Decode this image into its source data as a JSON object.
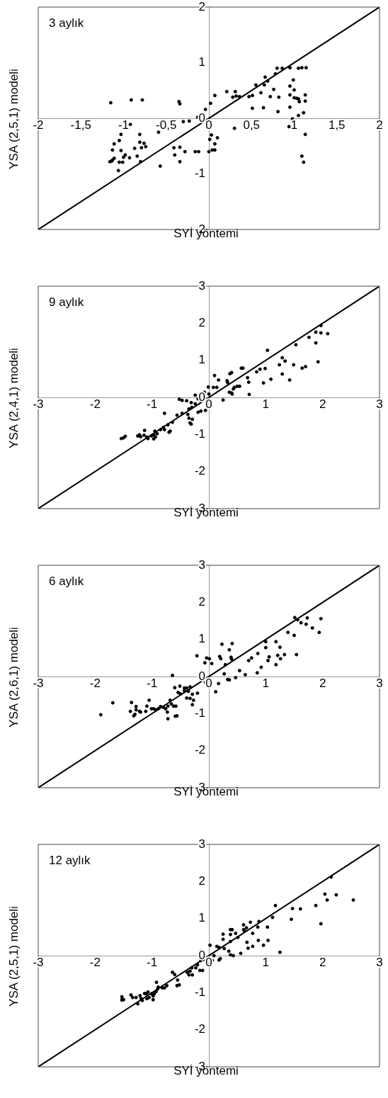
{
  "chart_data": [
    {
      "type": "scatter",
      "annotations": [
        "3 aylık"
      ],
      "xlabel": "SYİ yöntemi",
      "ylabel": "YSA (2,5,1) modeli",
      "xlim": [
        -2,
        2
      ],
      "ylim": [
        -2,
        2
      ],
      "xticks": [
        -2,
        {
          "value": -1.5,
          "label": "-1,5"
        },
        -1,
        {
          "value": -0.5,
          "label": "-0,5"
        },
        0,
        {
          "value": 0.5,
          "label": "0,5"
        },
        1,
        {
          "value": 1.5,
          "label": "1,5"
        },
        2
      ],
      "yticks": [
        -2,
        -1,
        0,
        1,
        2
      ],
      "series": [
        {
          "type": "scatter",
          "color": "#000000",
          "marker": "circle",
          "x": [
            -1.15,
            -0.91,
            -0.78,
            -0.35,
            -0.34,
            -0.04,
            0.02,
            0.07,
            0.21,
            0.31,
            0.28,
            0.32,
            0.36,
            0.47,
            0.51,
            0.51,
            0.55,
            0.61,
            0.64,
            0.66,
            0.69,
            0.65,
            0.72,
            0.76,
            0.8,
            0.86,
            0.95,
            0.78,
            0.82,
            0.81,
            0.99,
            0.95,
            1.0,
            0.95,
            1.0,
            1.03,
            1.05,
            1.06,
            0.95,
            1.05,
            1.09,
            1.14,
            1.13,
            1.13,
            1.11,
            1.05,
            0.98,
            0.94,
            1.13,
            1.09,
            1.11,
            0.3,
            -0.13,
            -0.3,
            -0.23,
            -0.59,
            -1.03,
            -0.81,
            -0.92,
            -1.05,
            -1.11,
            -0.81,
            -0.76,
            -0.74,
            -0.87,
            -0.79,
            -1.13,
            -1.03,
            -0.98,
            -1.0,
            -0.93,
            -0.84,
            -1.16,
            -1.14,
            -1.13,
            -1.11,
            -1.05,
            -1.01,
            -0.8,
            -1.06,
            -0.57,
            -0.41,
            -0.34,
            -0.28,
            -0.4,
            -0.34,
            -0.16,
            -0.12,
            0.0,
            0.04,
            0.07,
            0.07,
            0.1,
            0.03,
            0.01
          ],
          "values": [
            0.28,
            0.33,
            0.33,
            0.3,
            0.26,
            0.16,
            0.27,
            0.41,
            0.48,
            0.48,
            0.38,
            0.4,
            0.39,
            0.39,
            0.41,
            0.18,
            0.6,
            0.46,
            0.19,
            0.74,
            0.67,
            0.6,
            0.39,
            0.52,
            0.9,
            0.9,
            0.91,
            0.8,
            0.38,
            0.12,
            0.69,
            0.58,
            0.51,
            0.42,
            0.37,
            0.36,
            0.35,
            0.3,
            0.2,
            0.9,
            0.91,
            0.91,
            0.42,
            0.31,
            0.1,
            0.05,
            -0.01,
            -0.15,
            -0.29,
            -0.68,
            -0.79,
            -0.18,
            0.02,
            -0.06,
            -0.05,
            -0.25,
            -0.29,
            -0.29,
            -0.11,
            -0.4,
            -0.46,
            -0.43,
            -0.45,
            -0.51,
            -0.54,
            -0.53,
            -0.57,
            -0.58,
            -0.66,
            -0.7,
            -0.71,
            -0.68,
            -0.78,
            -0.77,
            -0.75,
            -0.72,
            -0.79,
            -0.79,
            -0.78,
            -0.94,
            -0.86,
            -0.53,
            -0.52,
            -0.6,
            -0.66,
            -0.78,
            -0.6,
            -0.6,
            -0.6,
            -0.57,
            -0.57,
            -0.46,
            -0.35,
            -0.3,
            -0.38
          ]
        },
        {
          "type": "line",
          "color": "#000000",
          "x": [
            -2,
            2
          ],
          "values": [
            -2,
            2
          ]
        }
      ]
    },
    {
      "type": "scatter",
      "annotations": [
        "9 aylık"
      ],
      "xlabel": "SYİ yöntemi",
      "ylabel": "YSA (2,4,1) modeli",
      "xlim": [
        -3,
        3
      ],
      "ylim": [
        -3,
        3
      ],
      "xticks": [
        -3,
        -2,
        -1,
        0,
        1,
        2,
        3
      ],
      "yticks": [
        -3,
        -2,
        -1,
        0,
        1,
        2,
        3
      ],
      "series": [
        {
          "type": "scatter",
          "color": "#000000",
          "marker": "circle",
          "x": [
            1.97,
            1.88,
            1.97,
            2.09,
            1.76,
            1.88,
            1.53,
            1.03,
            1.92,
            1.29,
            1.34,
            1.49,
            1.24,
            1.29,
            1.64,
            1.7,
            1.42,
            0.99,
            0.9,
            0.84,
            0.96,
            1.09,
            0.57,
            0.6,
            0.68,
            0.7,
            0.71,
            0.37,
            0.4,
            0.32,
            0.33,
            0.1,
            0.17,
            0.45,
            0.5,
            0.54,
            0.43,
            0.4,
            0.36,
            0.41,
            -0.01,
            0.08,
            0.14,
            -0.08,
            0.0,
            0.25,
            0.04,
            -0.06,
            -0.14,
            -0.19,
            -0.24,
            -0.19,
            -0.14,
            -0.52,
            -0.47,
            -0.39,
            -0.31,
            -0.24,
            -0.3,
            -0.35,
            -0.37,
            -0.47,
            -0.56,
            -0.35,
            -0.29,
            -0.33,
            -0.31,
            -0.78,
            -0.64,
            -0.72,
            -0.8,
            -0.85,
            -0.78,
            -0.68,
            -0.7,
            -0.95,
            -0.91,
            -0.97,
            -1.01,
            -1.13,
            -1.14,
            -1.09,
            -1.07,
            -0.97,
            -0.94,
            -1.25,
            -1.2,
            -1.22,
            -1.54,
            -1.5,
            -1.47
          ],
          "values": [
            1.94,
            1.76,
            1.74,
            1.72,
            1.62,
            1.47,
            1.42,
            1.27,
            0.96,
            1.07,
            0.98,
            0.88,
            0.88,
            0.63,
            0.79,
            0.83,
            0.47,
            0.78,
            0.76,
            0.69,
            0.39,
            0.49,
            0.79,
            0.79,
            0.53,
            0.41,
            0.08,
            0.64,
            0.67,
            0.45,
            0.4,
            0.59,
            0.47,
            0.27,
            0.3,
            0.3,
            0.23,
            0.12,
            0.14,
            0.09,
            0.28,
            0.27,
            0.27,
            0.14,
            0.09,
            -0.07,
            -0.22,
            -0.35,
            -0.37,
            -0.4,
            0.06,
            -0.04,
            -0.09,
            -0.05,
            -0.08,
            -0.09,
            -0.14,
            -0.17,
            -0.27,
            -0.31,
            -0.46,
            -0.43,
            -0.48,
            -0.56,
            -0.59,
            -0.69,
            -0.72,
            -0.43,
            -0.67,
            -0.74,
            -0.81,
            -0.87,
            -0.87,
            -0.91,
            -0.94,
            -0.91,
            -0.98,
            -1.01,
            -1.04,
            -0.89,
            -1.02,
            -1.07,
            -1.11,
            -1.12,
            -1.07,
            -1.04,
            -1.06,
            -1.01,
            -1.11,
            -1.09,
            -1.05
          ]
        },
        {
          "type": "line",
          "color": "#000000",
          "x": [
            -3,
            3
          ],
          "values": [
            -3,
            3
          ]
        }
      ]
    },
    {
      "type": "scatter",
      "annotations": [
        "6 aylık"
      ],
      "xlabel": "SYİ yöntemi",
      "ylabel": "YSA (2,6,1) modeli",
      "xlim": [
        -3,
        3
      ],
      "ylim": [
        -3,
        3
      ],
      "xticks": [
        -3,
        -2,
        -1,
        0,
        1,
        2,
        3
      ],
      "yticks": [
        -3,
        -2,
        -1,
        0,
        1,
        2,
        3
      ],
      "series": [
        {
          "type": "scatter",
          "color": "#000000",
          "marker": "circle",
          "x": [
            1.51,
            1.56,
            1.73,
            1.62,
            1.71,
            1.82,
            1.97,
            1.94,
            1.39,
            1.5,
            1.54,
            1.0,
            1.0,
            1.18,
            1.25,
            0.86,
            0.75,
            0.7,
            0.85,
            0.92,
            1.06,
            1.04,
            1.21,
            1.26,
            1.33,
            1.18,
            0.23,
            0.41,
            0.36,
            0.19,
            0.21,
            0.39,
            0.4,
            0.29,
            -0.21,
            -0.04,
            0.01,
            -0.07,
            0.05,
            -0.14,
            0.27,
            0.33,
            0.36,
            0.47,
            0.54,
            0.64,
            0.17,
            0.12,
            -0.06,
            0.0,
            -0.64,
            -0.6,
            -0.51,
            -0.54,
            -0.5,
            -0.43,
            -0.39,
            -0.43,
            -0.36,
            -0.33,
            -0.39,
            -0.33,
            -0.29,
            -0.2,
            -0.27,
            -0.29,
            -0.68,
            -0.66,
            -0.62,
            -0.72,
            -0.76,
            -0.8,
            -0.85,
            -0.89,
            -0.93,
            -0.73,
            -0.72,
            -0.58,
            -0.59,
            -0.56,
            -1.05,
            -1.09,
            -1.01,
            -0.97,
            -1.11,
            -1.2,
            -1.28,
            -1.36,
            -1.28,
            -1.38,
            -1.32,
            -1.3,
            -1.22,
            -1.69,
            -1.9
          ],
          "values": [
            1.59,
            1.53,
            1.58,
            1.45,
            1.41,
            1.31,
            1.56,
            1.19,
            1.19,
            1.11,
            0.59,
            0.94,
            0.78,
            0.94,
            0.79,
            0.62,
            0.5,
            0.43,
            0.1,
            0.25,
            0.53,
            0.43,
            0.57,
            0.48,
            0.59,
            0.32,
            0.87,
            0.89,
            0.72,
            0.54,
            0.48,
            0.52,
            0.47,
            0.32,
            0.56,
            0.5,
            0.48,
            0.37,
            0.35,
            0.12,
            0.07,
            -0.08,
            -0.09,
            -0.03,
            0.16,
            0.05,
            -0.19,
            -0.41,
            -0.16,
            -0.09,
            0.03,
            -0.3,
            -0.26,
            -0.43,
            -0.47,
            -0.31,
            -0.31,
            -0.38,
            -0.4,
            -0.28,
            -0.58,
            -0.59,
            -0.48,
            -0.45,
            -0.64,
            -0.76,
            -0.64,
            -0.74,
            -0.8,
            -0.8,
            -0.87,
            -0.83,
            -0.81,
            -0.87,
            -0.9,
            -0.96,
            -1.14,
            -0.8,
            -1.07,
            -1.06,
            -0.64,
            -0.8,
            -0.87,
            -0.87,
            -0.94,
            -0.96,
            -0.9,
            -0.7,
            -0.81,
            -0.94,
            -1.06,
            -1.02,
            -0.94,
            -0.71,
            -1.03
          ]
        },
        {
          "type": "line",
          "color": "#000000",
          "x": [
            -3,
            3
          ],
          "values": [
            -3,
            3
          ]
        }
      ]
    },
    {
      "type": "scatter",
      "annotations": [
        "12 aylık"
      ],
      "xlabel": "SYİ yöntemi",
      "ylabel": "YSA (2,5,1) modeli",
      "xlim": [
        -3,
        3
      ],
      "ylim": [
        -3,
        3
      ],
      "xticks": [
        -3,
        -2,
        -1,
        0,
        1,
        2,
        3
      ],
      "yticks": [
        -3,
        -2,
        -1,
        0,
        1,
        2,
        3
      ],
      "series": [
        {
          "type": "scatter",
          "color": "#000000",
          "marker": "circle",
          "x": [
            2.15,
            2.04,
            2.24,
            2.54,
            2.08,
            1.97,
            1.88,
            1.61,
            1.47,
            1.45,
            1.17,
            1.12,
            1.25,
            1.03,
            1.04,
            0.96,
            0.87,
            0.88,
            0.86,
            0.77,
            0.73,
            0.66,
            0.61,
            0.61,
            0.63,
            0.67,
            0.69,
            0.77,
            0.56,
            0.38,
            0.41,
            0.38,
            0.47,
            0.51,
            0.25,
            0.25,
            0.38,
            0.27,
            0.35,
            0.38,
            0.43,
            0.14,
            0.18,
            0.02,
            -0.13,
            0.09,
            0.18,
            0.2,
            0.06,
            -0.02,
            -0.09,
            -0.14,
            -0.2,
            -0.23,
            -0.11,
            -0.16,
            -0.3,
            -0.33,
            -0.35,
            -0.29,
            -0.38,
            -0.64,
            -0.6,
            -0.55,
            -0.56,
            -0.52,
            -0.74,
            -0.78,
            -0.82,
            -0.89,
            -0.92,
            -0.9,
            -0.93,
            -0.96,
            -1.01,
            -0.98,
            -1.07,
            -1.1,
            -1.13,
            -1.09,
            -1.05,
            -0.98,
            -1.21,
            -1.19,
            -1.17,
            -1.25,
            -1.28,
            -1.34,
            -1.37,
            -1.53,
            -1.52,
            -1.5,
            -1.53
          ],
          "values": [
            2.12,
            1.66,
            1.64,
            1.5,
            1.5,
            0.86,
            1.35,
            1.26,
            1.27,
            0.98,
            1.35,
            1.03,
            0.09,
            0.77,
            0.41,
            0.28,
            0.41,
            0.92,
            0.77,
            0.6,
            0.9,
            0.75,
            0.83,
            0.7,
            0.66,
            0.36,
            0.2,
            0.25,
            0.06,
            0.7,
            0.7,
            0.57,
            0.6,
            0.49,
            0.58,
            0.44,
            0.38,
            0.19,
            0.12,
            0.02,
            0.0,
            0.25,
            0.22,
            0.28,
            0.13,
            0.0,
            -0.12,
            -0.08,
            -0.13,
            -0.23,
            -0.1,
            -0.13,
            -0.25,
            -0.33,
            -0.4,
            -0.4,
            -0.33,
            -0.42,
            -0.52,
            -0.52,
            -0.45,
            -0.45,
            -0.51,
            -0.66,
            -0.81,
            -0.79,
            -0.81,
            -0.87,
            -0.87,
            -0.85,
            -0.72,
            -0.9,
            -0.97,
            -1.03,
            -1.03,
            -1.09,
            -0.98,
            -1.03,
            -1.02,
            -1.16,
            -1.13,
            -1.19,
            -1.08,
            -1.16,
            -1.21,
            -1.3,
            -1.13,
            -1.13,
            -1.06,
            -1.11,
            -1.17,
            -1.19,
            -1.2
          ]
        },
        {
          "type": "line",
          "color": "#000000",
          "x": [
            -3,
            3
          ],
          "values": [
            -3,
            3
          ]
        }
      ]
    }
  ]
}
